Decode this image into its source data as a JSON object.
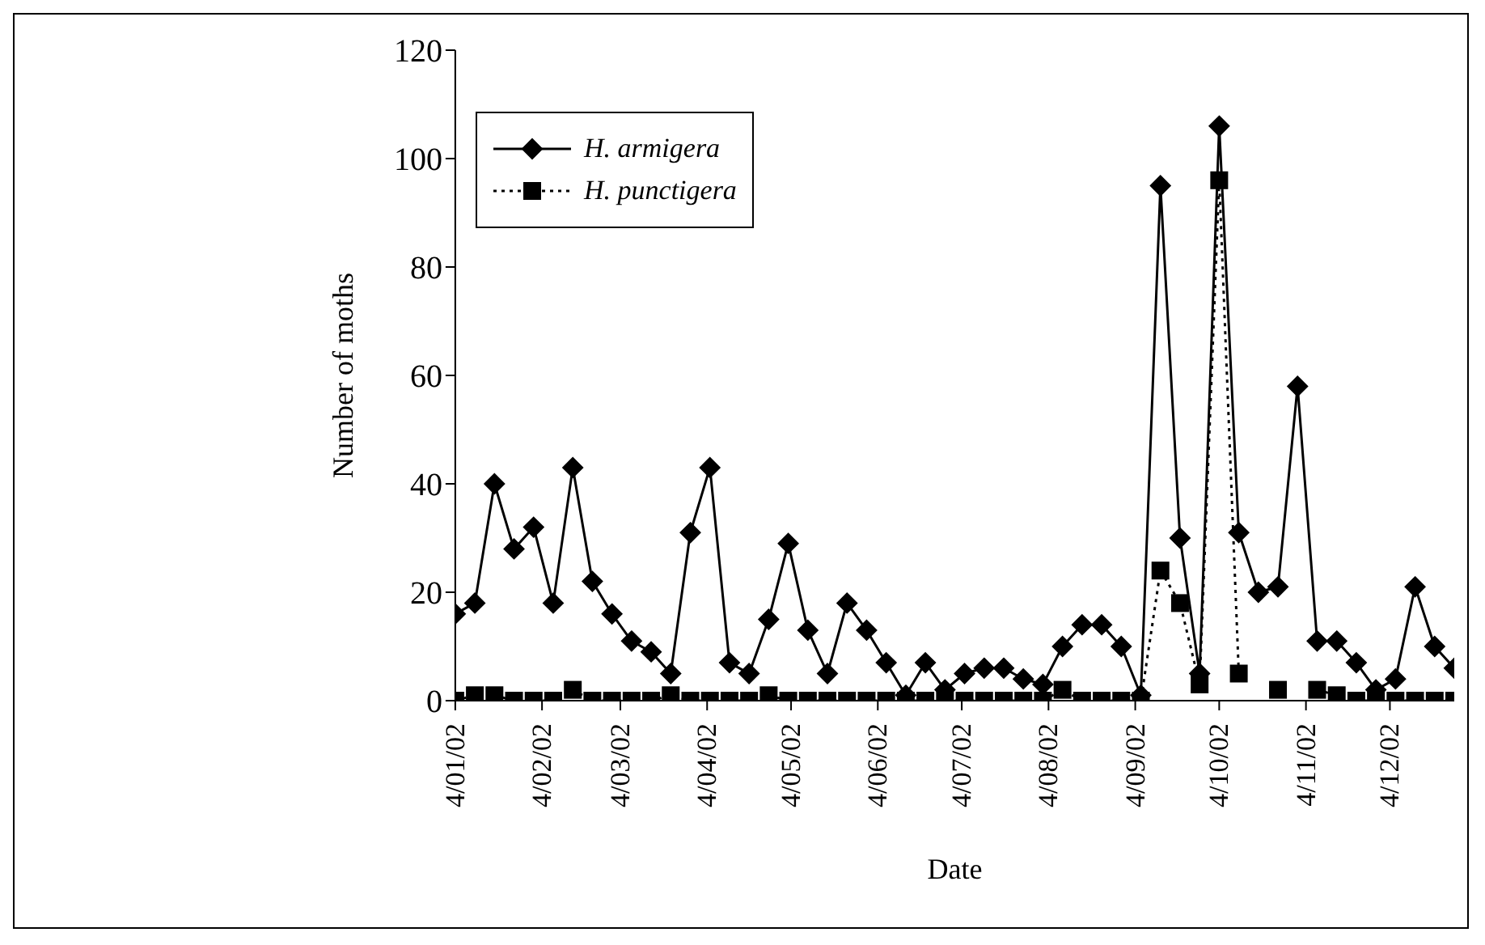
{
  "chart_data": {
    "type": "line",
    "xlabel": "Date",
    "ylabel": "Number of moths",
    "x": [
      "2002-01-04",
      "2002-01-11",
      "2002-01-18",
      "2002-01-25",
      "2002-02-01",
      "2002-02-08",
      "2002-02-15",
      "2002-02-22",
      "2002-03-01",
      "2002-03-08",
      "2002-03-15",
      "2002-03-22",
      "2002-03-29",
      "2002-04-05",
      "2002-04-12",
      "2002-04-19",
      "2002-04-26",
      "2002-05-03",
      "2002-05-10",
      "2002-05-17",
      "2002-05-24",
      "2002-05-31",
      "2002-06-07",
      "2002-06-14",
      "2002-06-21",
      "2002-06-28",
      "2002-07-05",
      "2002-07-12",
      "2002-07-19",
      "2002-07-26",
      "2002-08-02",
      "2002-08-09",
      "2002-08-16",
      "2002-08-23",
      "2002-08-30",
      "2002-09-06",
      "2002-09-13",
      "2002-09-20",
      "2002-09-27",
      "2002-10-04",
      "2002-10-11",
      "2002-10-18",
      "2002-10-25",
      "2002-11-01",
      "2002-11-08",
      "2002-11-15",
      "2002-11-22",
      "2002-11-29",
      "2002-12-06",
      "2002-12-13",
      "2002-12-20",
      "2002-12-27"
    ],
    "series": [
      {
        "name": "H. armigera",
        "color": "#000000",
        "marker": "diamond",
        "line_style": "solid",
        "values": [
          16,
          18,
          40,
          28,
          32,
          18,
          43,
          22,
          16,
          11,
          9,
          5,
          31,
          43,
          7,
          5,
          15,
          29,
          13,
          5,
          18,
          13,
          7,
          1,
          7,
          2,
          5,
          6,
          6,
          4,
          3,
          10,
          14,
          14,
          10,
          1,
          95,
          30,
          5,
          106,
          31,
          20,
          21,
          58,
          11,
          11,
          7,
          2,
          4,
          21,
          10,
          6
        ]
      },
      {
        "name": "H. punctigera",
        "color": "#000000",
        "marker": "square",
        "line_style": "dotted",
        "values": [
          0,
          1,
          1,
          0,
          0,
          0,
          2,
          0,
          0,
          0,
          0,
          1,
          0,
          0,
          0,
          0,
          1,
          0,
          0,
          0,
          0,
          0,
          0,
          0,
          0,
          0,
          0,
          0,
          0,
          0,
          0,
          2,
          0,
          0,
          0,
          0,
          24,
          18,
          3,
          96,
          5,
          null,
          2,
          null,
          2,
          1,
          0,
          0,
          0,
          0,
          0,
          0
        ]
      }
    ],
    "xlim": [
      "2002-01-04",
      "2002-12-27"
    ],
    "xticks": [
      {
        "value": "2002-01-04",
        "label": "4/01/02"
      },
      {
        "value": "2002-02-04",
        "label": "4/02/02"
      },
      {
        "value": "2002-03-04",
        "label": "4/03/02"
      },
      {
        "value": "2002-04-04",
        "label": "4/04/02"
      },
      {
        "value": "2002-05-04",
        "label": "4/05/02"
      },
      {
        "value": "2002-06-04",
        "label": "4/06/02"
      },
      {
        "value": "2002-07-04",
        "label": "4/07/02"
      },
      {
        "value": "2002-08-04",
        "label": "4/08/02"
      },
      {
        "value": "2002-09-04",
        "label": "4/09/02"
      },
      {
        "value": "2002-10-04",
        "label": "4/10/02"
      },
      {
        "value": "2002-11-04",
        "label": "4/11/02"
      },
      {
        "value": "2002-12-04",
        "label": "4/12/02"
      }
    ],
    "ylim": [
      0,
      120
    ],
    "yticks": [
      0,
      20,
      40,
      60,
      80,
      100,
      120
    ],
    "grid": false,
    "legend": "top left"
  }
}
